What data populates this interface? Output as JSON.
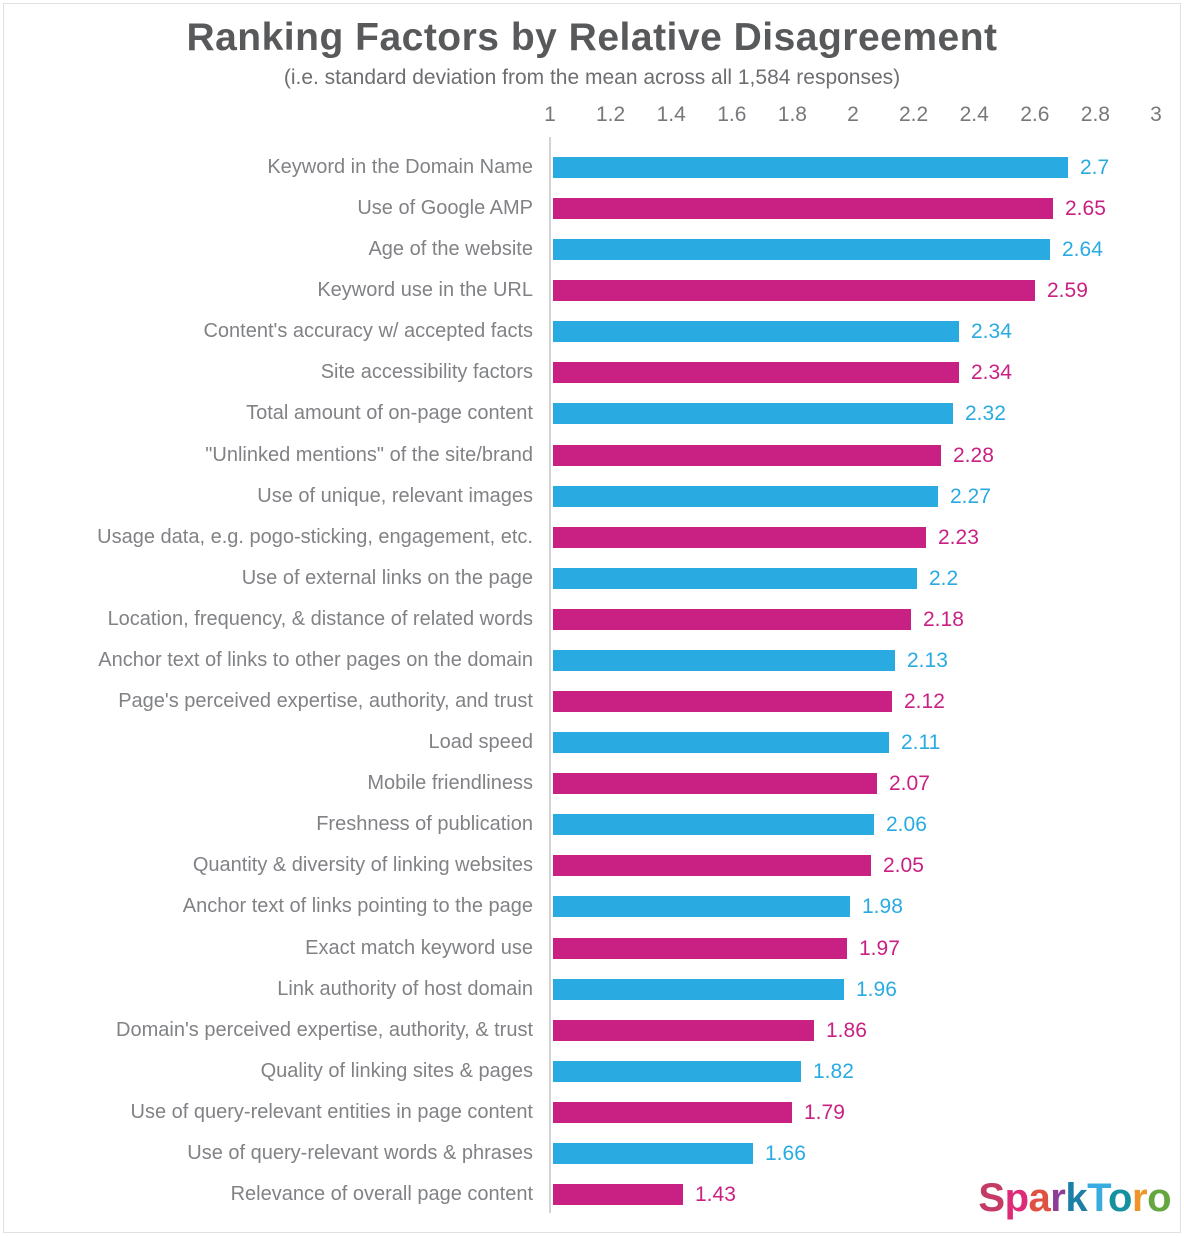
{
  "page": {
    "title": "Ranking Factors by Relative Disagreement",
    "subtitle": "(i.e. standard deviation from the mean across all 1,584 responses)"
  },
  "colors": {
    "bar_blue": "#29ABE2",
    "bar_magenta": "#C92183",
    "title_text": "#58595B",
    "subtitle_text": "#6D6E71",
    "category_text": "#808285",
    "tick_text": "#77787B",
    "axis_line": "#D1D3D4"
  },
  "logo": {
    "name": "SparkToro",
    "letters": [
      {
        "char": "S",
        "color": "#C43B66"
      },
      {
        "char": "p",
        "color": "#DE2B77"
      },
      {
        "char": "a",
        "color": "#DF5140"
      },
      {
        "char": "r",
        "color": "#8D3D93"
      },
      {
        "char": "k",
        "color": "#1B7FA7"
      },
      {
        "char": "T",
        "color": "#3AABDE"
      },
      {
        "char": "o",
        "color": "#13919F"
      },
      {
        "char": "r",
        "color": "#EE9428"
      },
      {
        "char": "o",
        "color": "#66A63F"
      }
    ]
  },
  "chart_data": {
    "type": "bar",
    "orientation": "horizontal",
    "title": "Ranking Factors by Relative Disagreement",
    "subtitle": "(i.e. standard deviation from the mean across all 1,584 responses)",
    "xlim": [
      1,
      3
    ],
    "x_ticks": [
      "1",
      "1.2",
      "1.4",
      "1.6",
      "1.8",
      "2",
      "2.2",
      "2.4",
      "2.6",
      "2.8",
      "3"
    ],
    "grid": false,
    "legend": null,
    "bar_colors": {
      "odd_rows": "#29ABE2",
      "even_rows": "#C92183"
    },
    "categories": [
      "Keyword in the Domain Name",
      "Use of Google AMP",
      "Age of the website",
      "Keyword use in the URL",
      "Content's accuracy w/ accepted facts",
      "Site accessibility factors",
      "Total amount of on-page content",
      "\"Unlinked mentions\" of the site/brand",
      "Use of unique, relevant images",
      "Usage data, e.g. pogo-sticking, engagement, etc.",
      "Use of external links on the page",
      "Location, frequency, & distance of related words",
      "Anchor text of links to other pages on the domain",
      "Page's perceived expertise, authority, and trust",
      "Load speed",
      "Mobile friendliness",
      "Freshness of publication",
      "Quantity & diversity of linking websites",
      "Anchor text of links pointing to the page",
      "Exact match keyword use",
      "Link authority of host domain",
      "Domain's perceived expertise, authority, & trust",
      "Quality of linking sites & pages",
      "Use of query-relevant entities in page content",
      "Use of query-relevant words & phrases",
      "Relevance of overall page content"
    ],
    "values": [
      2.7,
      2.65,
      2.64,
      2.59,
      2.34,
      2.34,
      2.32,
      2.28,
      2.27,
      2.23,
      2.2,
      2.18,
      2.13,
      2.12,
      2.11,
      2.07,
      2.06,
      2.05,
      1.98,
      1.97,
      1.96,
      1.86,
      1.82,
      1.79,
      1.66,
      1.43
    ]
  }
}
